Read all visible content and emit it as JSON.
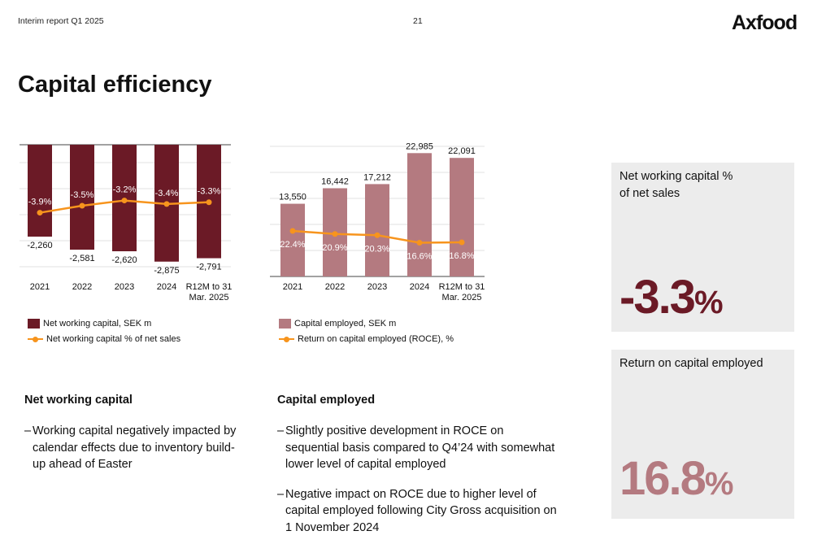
{
  "header": {
    "report": "Interim report Q1 2025",
    "page": "21",
    "logo": "Axfood"
  },
  "title": "Capital efficiency",
  "colors": {
    "nwc_bar": "#6b1a26",
    "ce_bar": "#b47a80",
    "line": "#f7941d",
    "kpi_box": "#ececec"
  },
  "chart_data": [
    {
      "type": "bar",
      "categories": [
        "2021",
        "2022",
        "2023",
        "2024",
        "R12M to 31 Mar. 2025"
      ],
      "series": [
        {
          "name": "Net working capital, SEK m",
          "type": "bar",
          "values": [
            -2260,
            -2581,
            -2620,
            -2875,
            -2791
          ],
          "labels": [
            "-2,260",
            "-2,581",
            "-2,620",
            "-2,875",
            "-2,791"
          ]
        },
        {
          "name": "Net working capital % of net sales",
          "type": "line",
          "values": [
            -3.9,
            -3.5,
            -3.2,
            -3.4,
            -3.3
          ],
          "labels": [
            "-3.9%",
            "-3.5%",
            "-3.2%",
            "-3.4%",
            "-3.3%"
          ]
        }
      ],
      "ylim": [
        -3200,
        0
      ],
      "line_ylim": [
        -7,
        0
      ],
      "grid": true,
      "legend": "bottom"
    },
    {
      "type": "bar",
      "categories": [
        "2021",
        "2022",
        "2023",
        "2024",
        "R12M to 31 Mar. 2025"
      ],
      "series": [
        {
          "name": "Capital employed, SEK m",
          "type": "bar",
          "values": [
            13550,
            16442,
            17212,
            22985,
            22091
          ],
          "labels": [
            "13,550",
            "16,442",
            "17,212",
            "22,985",
            "22,091"
          ]
        },
        {
          "name": "Return on capital employed (ROCE), %",
          "type": "line",
          "values": [
            22.4,
            20.9,
            20.3,
            16.6,
            16.8
          ],
          "labels": [
            "22.4%",
            "20.9%",
            "20.3%",
            "16.6%",
            "16.8%"
          ]
        }
      ],
      "ylim": [
        0,
        25000
      ],
      "line_ylim": [
        0,
        60
      ],
      "grid": true,
      "legend": "bottom"
    }
  ],
  "legends": {
    "nwc_bar": "Net working capital, SEK m",
    "nwc_line": "Net working capital % of net sales",
    "ce_bar": "Capital employed, SEK m",
    "ce_line": "Return on capital employed (ROCE), %"
  },
  "sections": {
    "nwc": {
      "heading": "Net working capital",
      "bullets": [
        "Working capital negatively impacted by calendar effects due to inventory build-up ahead of Easter"
      ]
    },
    "ce": {
      "heading": "Capital employed",
      "bullets": [
        "Slightly positive development in ROCE on sequential basis compared to Q4’24 with somewhat lower level of capital employed",
        "Negative impact on ROCE due to higher level of capital employed following City Gross acquisition on 1 November 2024"
      ]
    }
  },
  "kpis": [
    {
      "label": "Net working capital % of net sales",
      "value": "-3.3",
      "unit": "%"
    },
    {
      "label": "Return on capital employed",
      "value": "16.8",
      "unit": "%"
    }
  ]
}
